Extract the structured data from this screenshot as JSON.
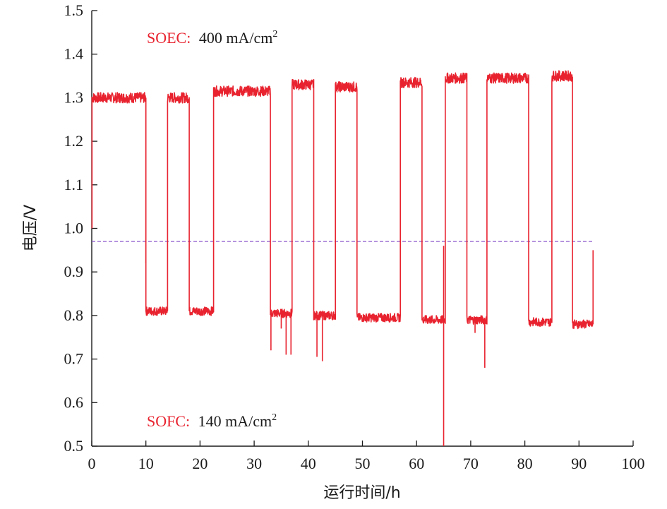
{
  "chart_data": {
    "type": "line",
    "xlabel": "运行时间/h",
    "ylabel": "电压/V",
    "xlim": [
      0,
      100
    ],
    "ylim": [
      0.5,
      1.5
    ],
    "xticks": [
      "0",
      "10",
      "20",
      "30",
      "40",
      "50",
      "60",
      "70",
      "80",
      "90",
      "100"
    ],
    "yticks": [
      "0.5",
      "0.6",
      "0.7",
      "0.8",
      "0.9",
      "1.0",
      "1.1",
      "1.2",
      "1.3",
      "1.4",
      "1.5"
    ],
    "grid": false,
    "line_color": "#e8232f",
    "reference_line": {
      "y": 0.97,
      "style": "dashed",
      "color": "#8a56c9"
    },
    "annotations": {
      "soec_label": "SOEC:",
      "soec_value": "400 mA/cm",
      "soec_sup": "2",
      "sofc_label": "SOFC:",
      "sofc_value": "140 mA/cm",
      "sofc_sup": "2"
    },
    "segments": [
      {
        "mode": "SOEC",
        "x_start": 0.0,
        "x_end": 10.0,
        "voltage": 1.3
      },
      {
        "mode": "SOFC",
        "x_start": 10.0,
        "x_end": 14.0,
        "voltage": 0.81
      },
      {
        "mode": "SOEC",
        "x_start": 14.0,
        "x_end": 18.0,
        "voltage": 1.3
      },
      {
        "mode": "SOFC",
        "x_start": 18.0,
        "x_end": 22.5,
        "voltage": 0.81
      },
      {
        "mode": "SOEC",
        "x_start": 22.5,
        "x_end": 33.0,
        "voltage": 1.315
      },
      {
        "mode": "SOFC",
        "x_start": 33.0,
        "x_end": 37.0,
        "voltage": 0.805
      },
      {
        "mode": "SOEC",
        "x_start": 37.0,
        "x_end": 41.0,
        "voltage": 1.33
      },
      {
        "mode": "SOFC",
        "x_start": 41.0,
        "x_end": 45.0,
        "voltage": 0.8
      },
      {
        "mode": "SOEC",
        "x_start": 45.0,
        "x_end": 49.0,
        "voltage": 1.325
      },
      {
        "mode": "SOFC",
        "x_start": 49.0,
        "x_end": 57.0,
        "voltage": 0.795
      },
      {
        "mode": "SOEC",
        "x_start": 57.0,
        "x_end": 61.0,
        "voltage": 1.335
      },
      {
        "mode": "SOFC",
        "x_start": 61.0,
        "x_end": 65.3,
        "voltage": 0.79
      },
      {
        "mode": "SOEC",
        "x_start": 65.3,
        "x_end": 69.3,
        "voltage": 1.345
      },
      {
        "mode": "SOFC",
        "x_start": 69.3,
        "x_end": 73.0,
        "voltage": 0.79
      },
      {
        "mode": "SOEC",
        "x_start": 73.0,
        "x_end": 80.7,
        "voltage": 1.345
      },
      {
        "mode": "SOFC",
        "x_start": 80.7,
        "x_end": 85.0,
        "voltage": 0.785
      },
      {
        "mode": "SOEC",
        "x_start": 85.0,
        "x_end": 88.8,
        "voltage": 1.35
      },
      {
        "mode": "SOFC",
        "x_start": 88.8,
        "x_end": 92.6,
        "voltage": 0.78
      }
    ],
    "spikes": [
      {
        "x": 0.05,
        "y": 1.0
      },
      {
        "x": 10.0,
        "y": 0.92
      },
      {
        "x": 33.1,
        "y": 0.72
      },
      {
        "x": 35.0,
        "y": 0.77
      },
      {
        "x": 35.9,
        "y": 0.71
      },
      {
        "x": 36.8,
        "y": 0.71
      },
      {
        "x": 41.6,
        "y": 0.705
      },
      {
        "x": 42.6,
        "y": 0.695
      },
      {
        "x": 65.0,
        "y": 0.5
      },
      {
        "x": 65.0,
        "y": 0.96
      },
      {
        "x": 70.8,
        "y": 0.76
      },
      {
        "x": 72.6,
        "y": 0.68
      },
      {
        "x": 92.6,
        "y": 0.95
      }
    ]
  }
}
